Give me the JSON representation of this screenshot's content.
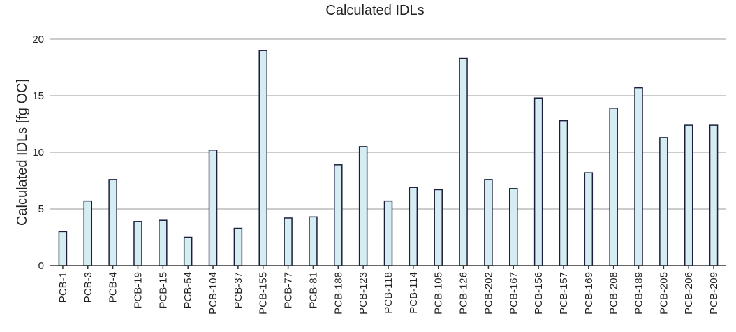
{
  "chart_data": {
    "type": "bar",
    "title": "Calculated IDLs",
    "xlabel": "",
    "ylabel": "Calculated IDLs [fg OC]",
    "ylim": [
      0,
      20
    ],
    "yticks": [
      0,
      5,
      10,
      15,
      20
    ],
    "grid": true,
    "bar_color": "#d4ecf2",
    "bar_edge_color": "#1b1f3b",
    "categories": [
      "PCB-1",
      "PCB-3",
      "PCB-4",
      "PCB-19",
      "PCB-15",
      "PCB-54",
      "PCB-104",
      "PCB-37",
      "PCB-155",
      "PCB-77",
      "PCB-81",
      "PCB-188",
      "PCB-123",
      "PCB-118",
      "PCB-114",
      "PCB-105",
      "PCB-126",
      "PCB-202",
      "PCB-167",
      "PCB-156",
      "PCB-157",
      "PCB-169",
      "PCB-208",
      "PCB-189",
      "PCB-205",
      "PCB-206",
      "PCB-209"
    ],
    "values": [
      3.0,
      5.7,
      7.6,
      3.9,
      4.0,
      2.5,
      10.2,
      3.3,
      19.0,
      4.2,
      4.3,
      8.9,
      10.5,
      5.7,
      6.9,
      6.7,
      18.3,
      7.6,
      6.8,
      14.8,
      12.8,
      8.2,
      13.9,
      15.7,
      11.3,
      12.4,
      12.4
    ]
  }
}
